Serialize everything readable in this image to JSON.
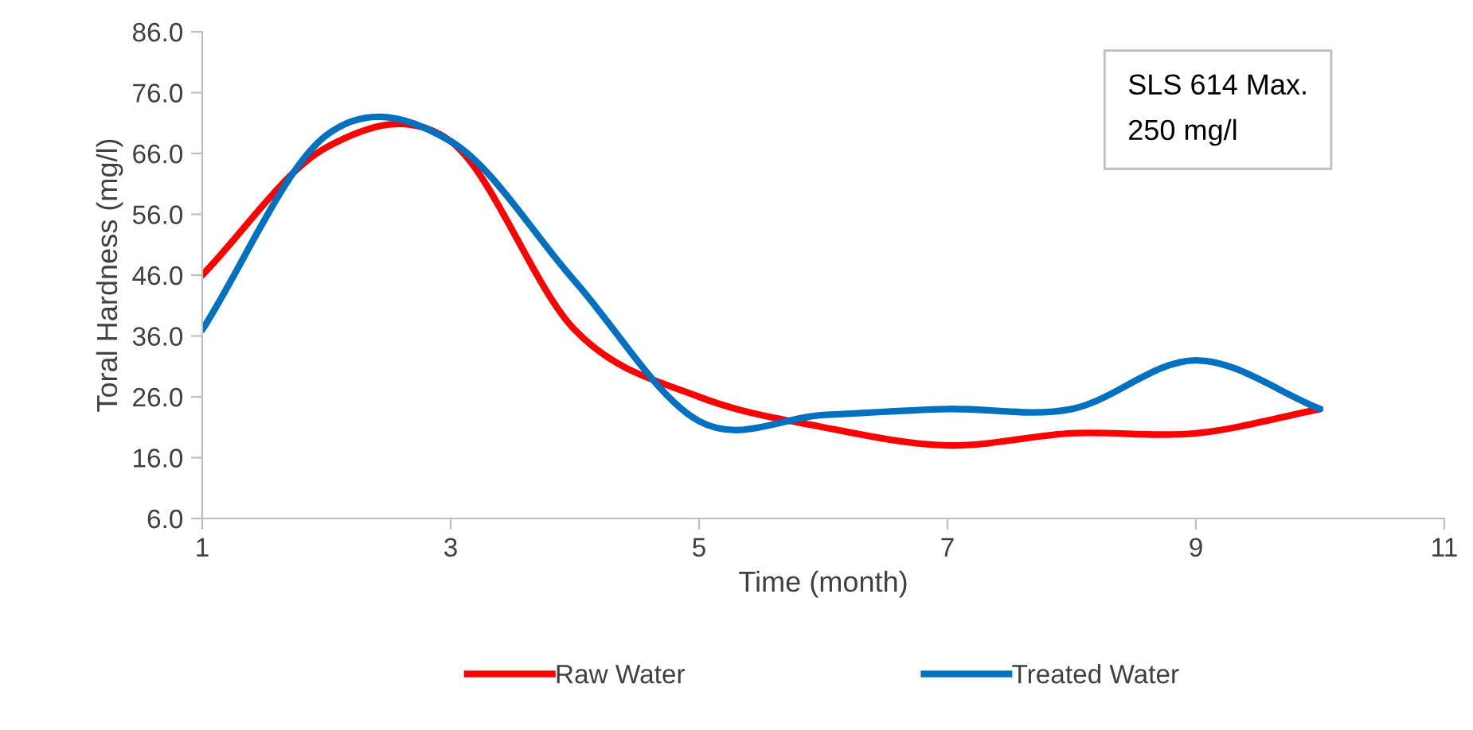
{
  "chart_data": {
    "type": "line",
    "xlabel": "Time (month)",
    "ylabel": "Toral Hardness (mg/l)",
    "x": [
      1,
      2,
      3,
      4,
      5,
      6,
      7,
      8,
      9,
      10
    ],
    "series": [
      {
        "name": "Raw Water",
        "color": "#ff0000",
        "values": [
          46,
          67,
          68,
          37,
          26,
          21,
          18,
          20,
          20,
          24
        ]
      },
      {
        "name": "Treated Water",
        "color": "#0070c0",
        "values": [
          37,
          69,
          68,
          45,
          22,
          23,
          24,
          24,
          32,
          24
        ]
      }
    ],
    "xlim": [
      1,
      11
    ],
    "xticks": [
      1,
      3,
      5,
      7,
      9,
      11
    ],
    "ylim": [
      6.0,
      86.0
    ],
    "yticks": [
      {
        "value": 6,
        "label": "6.0"
      },
      {
        "value": 16,
        "label": "16.0"
      },
      {
        "value": 26,
        "label": "26.0"
      },
      {
        "value": 36,
        "label": "36.0"
      },
      {
        "value": 46,
        "label": "46.0"
      },
      {
        "value": 56,
        "label": "56.0"
      },
      {
        "value": 66,
        "label": "66.0"
      },
      {
        "value": 76,
        "label": "76.0"
      },
      {
        "value": 86,
        "label": "86.0"
      }
    ],
    "annotations": [
      "SLS 614 Max.\n250 mg/l"
    ],
    "grid": false,
    "legend": "bottom",
    "marker": "none",
    "line_style": "solid"
  }
}
